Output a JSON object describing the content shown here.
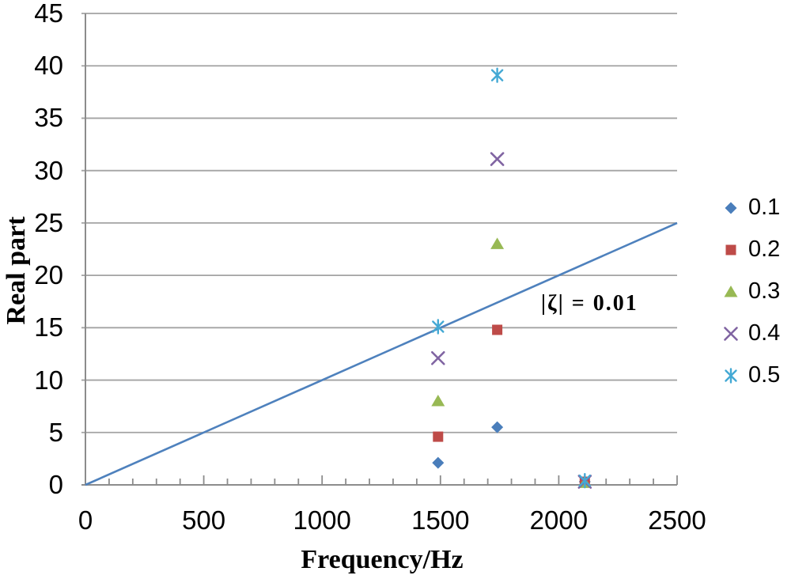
{
  "chart_data": {
    "type": "scatter",
    "title": "",
    "xlabel": "Frequency/Hz",
    "ylabel": "Real part",
    "xlim": [
      0,
      2500
    ],
    "ylim": [
      0,
      45
    ],
    "x_tick_labels": [
      0,
      500,
      1000,
      1500,
      2000,
      2500
    ],
    "x_minor_tick_step": 100,
    "y_tick_step": 5,
    "grid": "horizontal-only",
    "legend_position": "center-right",
    "series": [
      {
        "name": "0.1",
        "marker": "diamond",
        "color": "#4A7EBB",
        "points": [
          [
            1490,
            2.1
          ],
          [
            1740,
            5.5
          ],
          [
            2110,
            0.3
          ]
        ]
      },
      {
        "name": "0.2",
        "marker": "square",
        "color": "#BE4B48",
        "points": [
          [
            1490,
            4.6
          ],
          [
            1740,
            14.8
          ],
          [
            2110,
            0.3
          ]
        ]
      },
      {
        "name": "0.3",
        "marker": "triangle",
        "color": "#98B954",
        "points": [
          [
            1490,
            8.0
          ],
          [
            1740,
            23.0
          ],
          [
            2110,
            0.2
          ]
        ]
      },
      {
        "name": "0.4",
        "marker": "x",
        "color": "#8064A2",
        "points": [
          [
            1490,
            12.1
          ],
          [
            1740,
            31.1
          ],
          [
            2110,
            0.3
          ]
        ]
      },
      {
        "name": "0.5",
        "marker": "asterisk",
        "color": "#44A9D4",
        "points": [
          [
            1490,
            15.1
          ],
          [
            1740,
            39.1
          ],
          [
            2110,
            0.4
          ]
        ]
      }
    ],
    "line": {
      "color": "#4E81BD",
      "points": [
        [
          0,
          0
        ],
        [
          2500,
          25
        ]
      ]
    },
    "annotation": {
      "text": "|ζ| = 0.01",
      "x": 2130,
      "y": 17.3
    }
  },
  "style": {
    "grid_color": "#A3A3A3",
    "axis_color": "#8C8C8C",
    "tick_color": "#8C8C8C",
    "text_color": "#000000"
  }
}
